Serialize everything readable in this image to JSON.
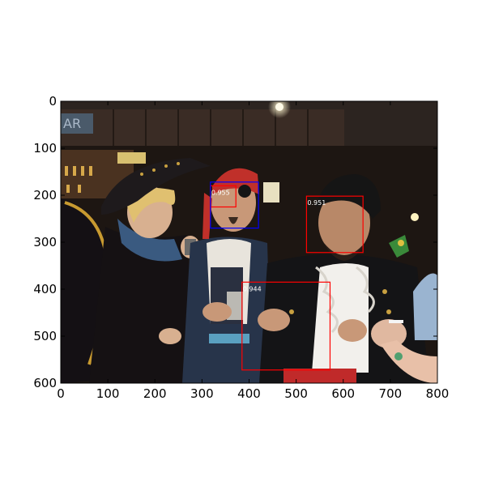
{
  "figure": {
    "x_ticks": [
      "0",
      "100",
      "200",
      "300",
      "400",
      "500",
      "600",
      "700",
      "800"
    ],
    "y_ticks": [
      "0",
      "100",
      "200",
      "300",
      "400",
      "500",
      "600"
    ],
    "xlim": [
      0,
      800
    ],
    "ylim": [
      600,
      0
    ],
    "frame_color": "#000000"
  },
  "photo": {
    "description_colors": {
      "night_bg": "#1c1510",
      "bar_wood": "#3b2a22",
      "ceiling": "#2a2320",
      "crowd_dark": "#121012"
    }
  },
  "detections": [
    {
      "score": "0.955",
      "color": "#ff0000",
      "x0": 318,
      "y0": 180,
      "x1": 372,
      "y1": 225
    },
    {
      "score": "",
      "color": "#0000ff",
      "x0": 318,
      "y0": 172,
      "x1": 420,
      "y1": 270
    },
    {
      "score": "0.951",
      "color": "#ff0000",
      "x0": 522,
      "y0": 202,
      "x1": 642,
      "y1": 322
    },
    {
      "score": "0.944",
      "color": "#ff0000",
      "x0": 385,
      "y0": 385,
      "x1": 572,
      "y1": 572
    }
  ]
}
